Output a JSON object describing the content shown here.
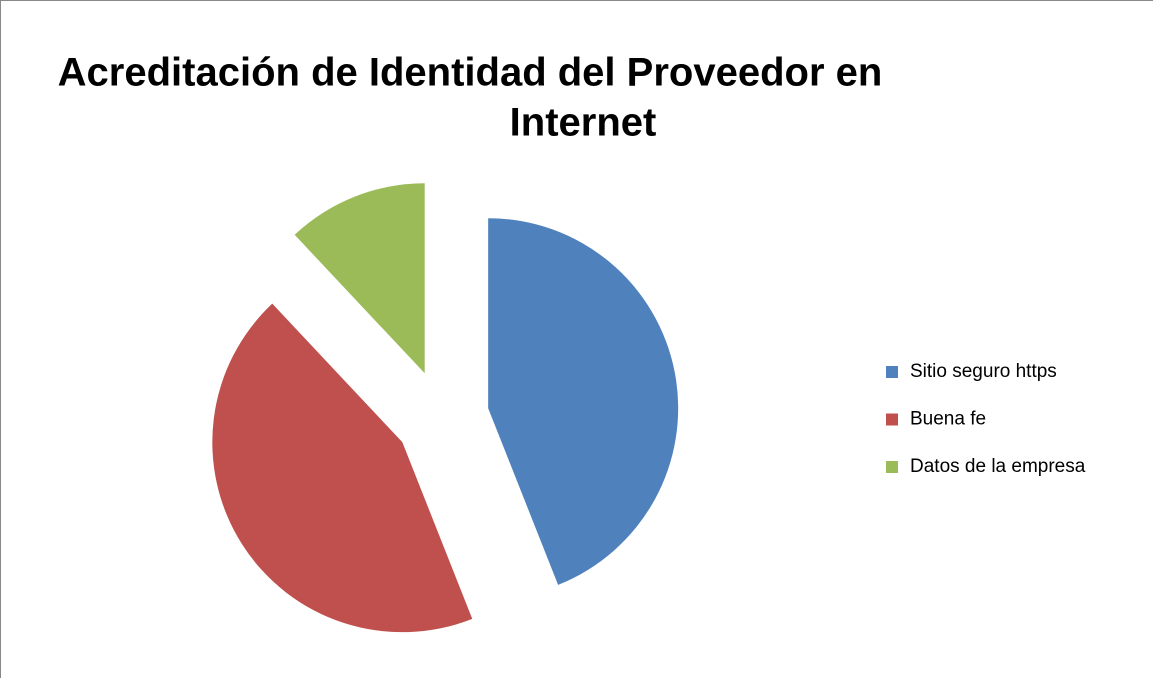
{
  "chart_data": {
    "type": "pie",
    "title": [
      "Acreditación de Identidad del Proveedor en",
      "Internet"
    ],
    "categories": [
      "Sitio seguro https",
      "Buena fe",
      "Datos de la empresa"
    ],
    "values": [
      44,
      44,
      12
    ],
    "colors": [
      "#4f81bd",
      "#c0504d",
      "#9bbb59"
    ],
    "exploded": true,
    "legend": "right"
  }
}
